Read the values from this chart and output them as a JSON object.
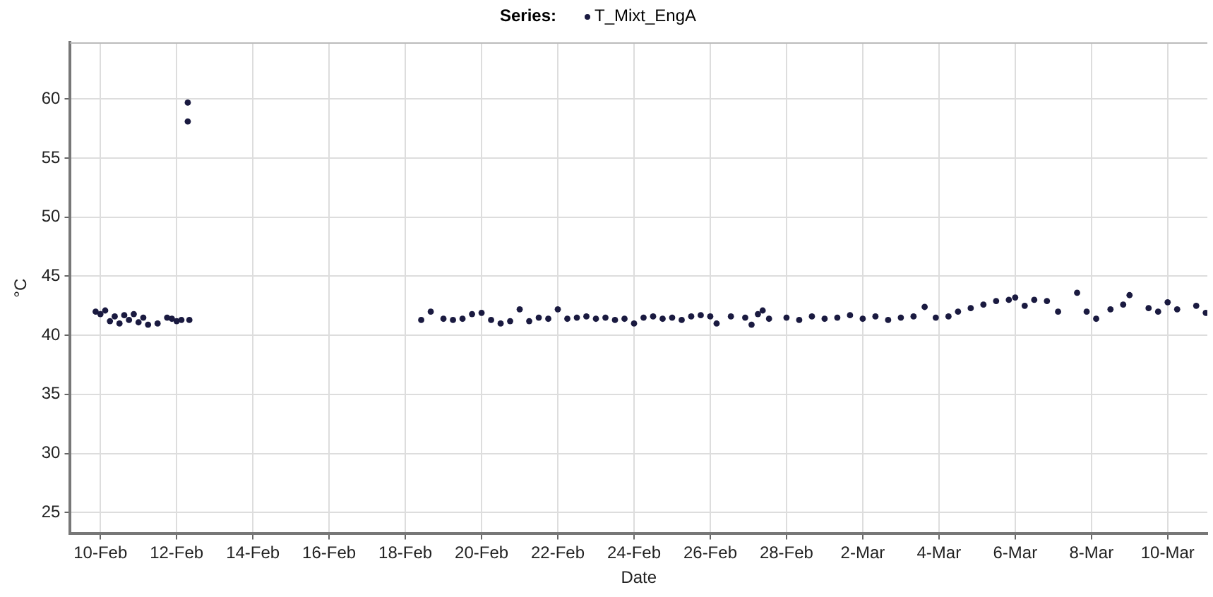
{
  "chart_data": {
    "type": "scatter",
    "xlabel": "Date",
    "ylabel": "°C",
    "legend_title": "Series:",
    "legend": "top",
    "grid": true,
    "marker": "circle",
    "xlim": [
      "--02-09T05:00",
      "--03-11T01:00"
    ],
    "xticks": [
      {
        "value": "--02-10",
        "label": "10-Feb"
      },
      {
        "value": "--02-12",
        "label": "12-Feb"
      },
      {
        "value": "--02-14",
        "label": "14-Feb"
      },
      {
        "value": "--02-16",
        "label": "16-Feb"
      },
      {
        "value": "--02-18",
        "label": "18-Feb"
      },
      {
        "value": "--02-20",
        "label": "20-Feb"
      },
      {
        "value": "--02-22",
        "label": "22-Feb"
      },
      {
        "value": "--02-24",
        "label": "24-Feb"
      },
      {
        "value": "--02-26",
        "label": "26-Feb"
      },
      {
        "value": "--02-28",
        "label": "28-Feb"
      },
      {
        "value": "--03-02",
        "label": "2-Mar"
      },
      {
        "value": "--03-04",
        "label": "4-Mar"
      },
      {
        "value": "--03-06",
        "label": "6-Mar"
      },
      {
        "value": "--03-08",
        "label": "8-Mar"
      },
      {
        "value": "--03-10",
        "label": "10-Mar"
      }
    ],
    "ylim": [
      23.2,
      64.8
    ],
    "yticks": [
      25,
      30,
      35,
      40,
      45,
      50,
      55,
      60
    ],
    "series": [
      {
        "name": "T_Mixt_EngA",
        "color": "#1a1a40",
        "x": [
          "--02-09T21:00",
          "--02-10T00:00",
          "--02-10T03:00",
          "--02-10T06:00",
          "--02-10T09:00",
          "--02-10T12:00",
          "--02-10T15:00",
          "--02-10T18:00",
          "--02-10T21:00",
          "--02-11T00:00",
          "--02-11T03:00",
          "--02-11T06:00",
          "--02-11T12:00",
          "--02-11T18:00",
          "--02-11T21:00",
          "--02-12T00:00",
          "--02-12T03:00",
          "--02-12T07:00",
          "--02-12T07:00",
          "--02-12T08:00",
          "--02-18T10:00",
          "--02-18T16:00",
          "--02-19T00:00",
          "--02-19T06:00",
          "--02-19T12:00",
          "--02-19T18:00",
          "--02-20T00:00",
          "--02-20T06:00",
          "--02-20T12:00",
          "--02-20T18:00",
          "--02-21T00:00",
          "--02-21T06:00",
          "--02-21T12:00",
          "--02-21T18:00",
          "--02-22T00:00",
          "--02-22T06:00",
          "--02-22T12:00",
          "--02-22T18:00",
          "--02-23T00:00",
          "--02-23T06:00",
          "--02-23T12:00",
          "--02-23T18:00",
          "--02-24T00:00",
          "--02-24T06:00",
          "--02-24T12:00",
          "--02-24T18:00",
          "--02-25T00:00",
          "--02-25T06:00",
          "--02-25T12:00",
          "--02-25T18:00",
          "--02-26T00:00",
          "--02-26T04:00",
          "--02-26T13:00",
          "--02-26T22:00",
          "--02-27T02:00",
          "--02-27T06:00",
          "--02-27T09:00",
          "--02-27T13:00",
          "--02-28T00:00",
          "--02-28T08:00",
          "--02-28T16:00",
          "--03-01T00:00",
          "--03-01T08:00",
          "--03-01T16:00",
          "--03-02T00:00",
          "--03-02T08:00",
          "--03-02T16:00",
          "--03-03T00:00",
          "--03-03T08:00",
          "--03-03T15:00",
          "--03-03T22:00",
          "--03-04T06:00",
          "--03-04T12:00",
          "--03-04T20:00",
          "--03-05T04:00",
          "--03-05T12:00",
          "--03-05T20:00",
          "--03-06T00:00",
          "--03-06T06:00",
          "--03-06T12:00",
          "--03-06T20:00",
          "--03-07T03:00",
          "--03-07T15:00",
          "--03-07T21:00",
          "--03-08T03:00",
          "--03-08T12:00",
          "--03-08T20:00",
          "--03-09T00:00",
          "--03-09T12:00",
          "--03-09T18:00",
          "--03-10T00:00",
          "--03-10T06:00",
          "--03-10T18:00",
          "--03-11T00:00"
        ],
        "values": [
          42.0,
          41.8,
          42.1,
          41.2,
          41.6,
          41.0,
          41.7,
          41.3,
          41.8,
          41.1,
          41.5,
          40.9,
          41.0,
          41.5,
          41.4,
          41.2,
          41.3,
          59.7,
          58.1,
          41.3,
          41.3,
          42.0,
          41.4,
          41.3,
          41.4,
          41.8,
          41.9,
          41.3,
          41.0,
          41.2,
          42.2,
          41.2,
          41.5,
          41.4,
          42.2,
          41.4,
          41.5,
          41.6,
          41.4,
          41.5,
          41.3,
          41.4,
          41.0,
          41.5,
          41.6,
          41.4,
          41.5,
          41.3,
          41.6,
          41.7,
          41.6,
          41.0,
          41.6,
          41.5,
          40.9,
          41.8,
          42.1,
          41.4,
          41.5,
          41.3,
          41.6,
          41.4,
          41.5,
          41.7,
          41.4,
          41.6,
          41.3,
          41.5,
          41.6,
          42.4,
          41.5,
          41.6,
          42.0,
          42.3,
          42.6,
          42.9,
          43.0,
          43.2,
          42.5,
          43.0,
          42.9,
          42.0,
          43.6,
          42.0,
          41.4,
          42.2,
          42.6,
          43.4,
          42.3,
          42.0,
          42.8,
          42.2,
          42.5,
          41.9
        ]
      }
    ]
  }
}
